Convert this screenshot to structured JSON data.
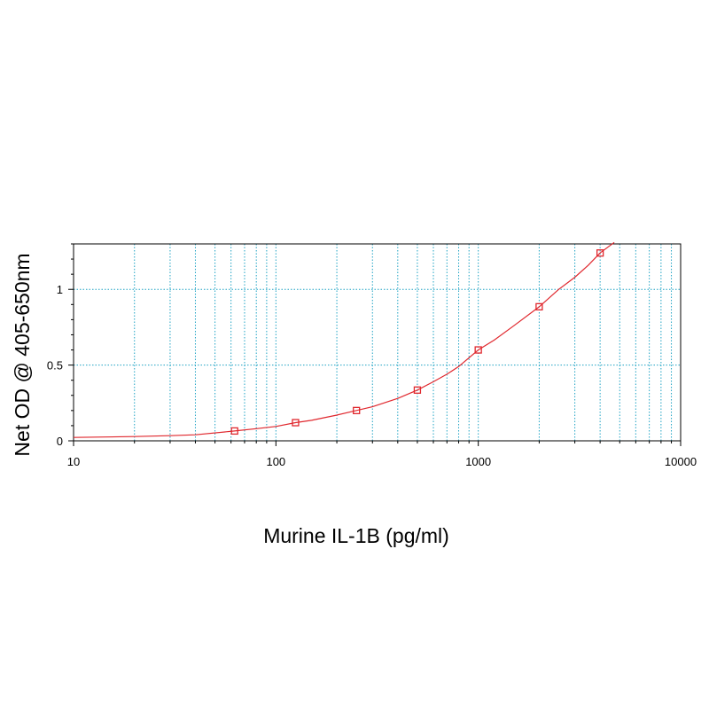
{
  "chart_data": {
    "type": "scatter",
    "xlabel": "Murine IL-1B (pg/ml)",
    "ylabel": "Net OD @ 405-650nm",
    "x_scale": "log",
    "xlim": [
      10,
      10000
    ],
    "ylim": [
      0,
      1.3
    ],
    "grid": true,
    "x_ticks": [
      10,
      100,
      1000,
      10000
    ],
    "x_tick_labels": [
      "10",
      "100",
      "1000",
      "10000"
    ],
    "y_ticks": [
      0,
      0.5,
      1
    ],
    "y_tick_labels": [
      "0",
      "0.5",
      "1"
    ],
    "series": [
      {
        "kind": "points",
        "marker": "square",
        "color": "#e0282e",
        "x": [
          62.5,
          125,
          250,
          500,
          1000,
          2000,
          4000
        ],
        "y": [
          0.065,
          0.12,
          0.2,
          0.335,
          0.6,
          0.885,
          1.24
        ]
      },
      {
        "kind": "fit-curve",
        "color": "#e0282e",
        "x": [
          10,
          20,
          30,
          40,
          62.5,
          80,
          100,
          125,
          150,
          200,
          250,
          300,
          400,
          500,
          600,
          700,
          800,
          1000,
          1200,
          1500,
          2000,
          2500,
          3000,
          3500,
          4000,
          4700
        ],
        "y": [
          0.022,
          0.028,
          0.034,
          0.04,
          0.065,
          0.08,
          0.095,
          0.12,
          0.135,
          0.17,
          0.2,
          0.225,
          0.28,
          0.335,
          0.39,
          0.44,
          0.49,
          0.6,
          0.665,
          0.76,
          0.885,
          1.0,
          1.08,
          1.16,
          1.24,
          1.31
        ]
      }
    ],
    "colors": {
      "grid": "#1fa3c4",
      "axis": "#000000",
      "marker": "#e0282e",
      "curve": "#e0282e"
    }
  }
}
